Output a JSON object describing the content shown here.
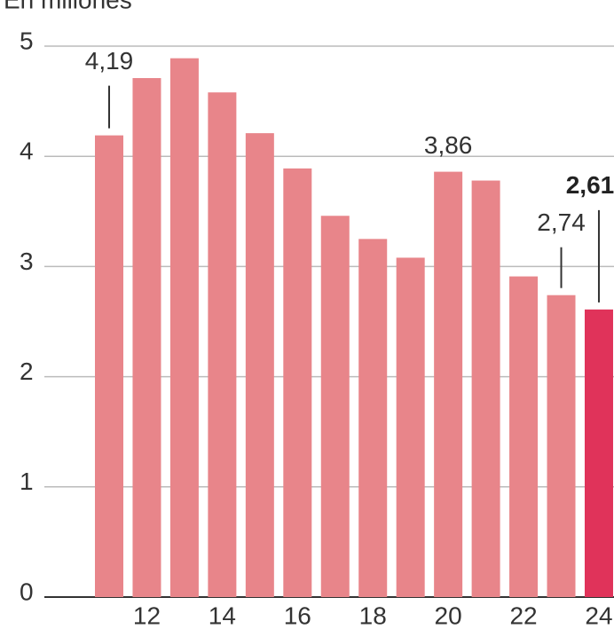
{
  "chart_data": {
    "type": "bar",
    "subtitle": "En millones",
    "categories": [
      null,
      "12",
      null,
      "14",
      null,
      "16",
      null,
      "18",
      null,
      "20",
      null,
      "22",
      null,
      "24"
    ],
    "values": [
      4.19,
      4.71,
      4.89,
      4.58,
      4.21,
      3.89,
      3.46,
      3.25,
      3.08,
      3.86,
      3.78,
      2.91,
      2.74,
      2.61
    ],
    "value_labels": [
      "4,19",
      null,
      null,
      null,
      null,
      null,
      null,
      null,
      null,
      "3,86",
      null,
      null,
      "2,74",
      "2,61"
    ],
    "colors": [
      "#e8858a",
      "#e8858a",
      "#e8858a",
      "#e8858a",
      "#e8858a",
      "#e8858a",
      "#e8858a",
      "#e8858a",
      "#e8858a",
      "#e8858a",
      "#e8858a",
      "#e8858a",
      "#e8858a",
      "#e0335a"
    ],
    "ylim": [
      0,
      5
    ],
    "yticks": [
      0,
      1,
      2,
      3,
      4,
      5
    ],
    "grid": true
  }
}
